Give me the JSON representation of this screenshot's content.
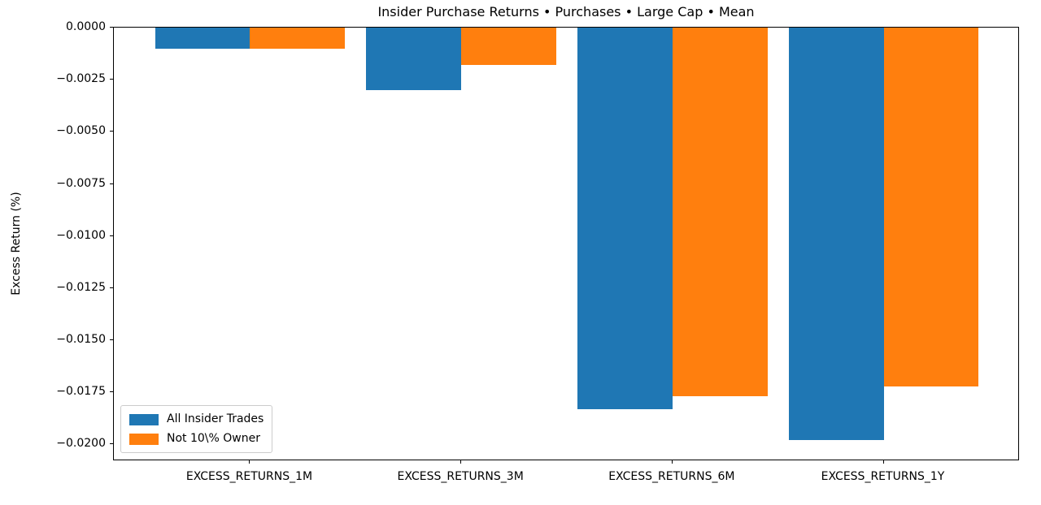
{
  "chart_data": {
    "type": "bar",
    "title": "Insider Purchase Returns • Purchases • Large Cap • Mean",
    "xlabel": "",
    "ylabel": "Excess Return (%)",
    "categories": [
      "EXCESS_RETURNS_1M",
      "EXCESS_RETURNS_3M",
      "EXCESS_RETURNS_6M",
      "EXCESS_RETURNS_1Y"
    ],
    "series": [
      {
        "name": "All Insider Trades",
        "color": "#1f77b4",
        "values": [
          -0.001,
          -0.003,
          -0.0183,
          -0.0198
        ]
      },
      {
        "name": "Not 10\\% Owner",
        "color": "#ff7f0e",
        "values": [
          -0.001,
          -0.0018,
          -0.0177,
          -0.0172
        ]
      }
    ],
    "ylim": [
      -0.0208,
      0.0
    ],
    "ytick_step": 0.0025,
    "ytick_labels": [
      "0.0000",
      "−0.0025",
      "−0.0050",
      "−0.0075",
      "−0.0100",
      "−0.0125",
      "−0.0150",
      "−0.0175",
      "−0.0200"
    ],
    "xlim_units": [
      -0.645,
      3.645
    ],
    "bar_width_units": 0.45,
    "grid": false,
    "legend_position": "lower left",
    "background_color": "#ffffff",
    "spine_color": "#000000"
  }
}
